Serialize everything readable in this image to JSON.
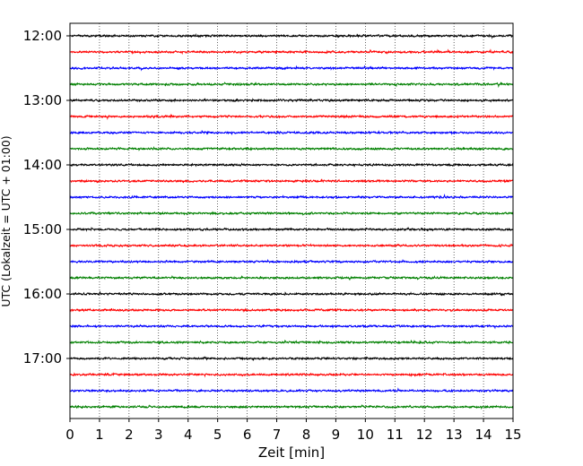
{
  "chart_data": {
    "type": "line",
    "title": "",
    "xlabel": "Zeit  [min]",
    "ylabel": "UTC (Lokalzeit = UTC + 01:00)",
    "xlim": [
      0,
      15
    ],
    "x_ticks": [
      "0",
      "1",
      "2",
      "3",
      "4",
      "5",
      "6",
      "7",
      "8",
      "9",
      "10",
      "11",
      "12",
      "13",
      "14",
      "15"
    ],
    "y_tick_labels": [
      "12:00",
      "13:00",
      "14:00",
      "15:00",
      "16:00",
      "17:00"
    ],
    "grid": "vertical dotted",
    "trace_colors": [
      "#000000",
      "#ff0000",
      "#0000ff",
      "#008000"
    ],
    "traces": [
      {
        "start": "12:00"
      },
      {
        "start": "12:15"
      },
      {
        "start": "12:30"
      },
      {
        "start": "12:45"
      },
      {
        "start": "13:00"
      },
      {
        "start": "13:15"
      },
      {
        "start": "13:30"
      },
      {
        "start": "13:45"
      },
      {
        "start": "14:00"
      },
      {
        "start": "14:15"
      },
      {
        "start": "14:30"
      },
      {
        "start": "14:45"
      },
      {
        "start": "15:00"
      },
      {
        "start": "15:15"
      },
      {
        "start": "15:30"
      },
      {
        "start": "15:45"
      },
      {
        "start": "16:00"
      },
      {
        "start": "16:15"
      },
      {
        "start": "16:30"
      },
      {
        "start": "16:45"
      },
      {
        "start": "17:00"
      },
      {
        "start": "17:15"
      },
      {
        "start": "17:30"
      },
      {
        "start": "17:45"
      }
    ]
  }
}
